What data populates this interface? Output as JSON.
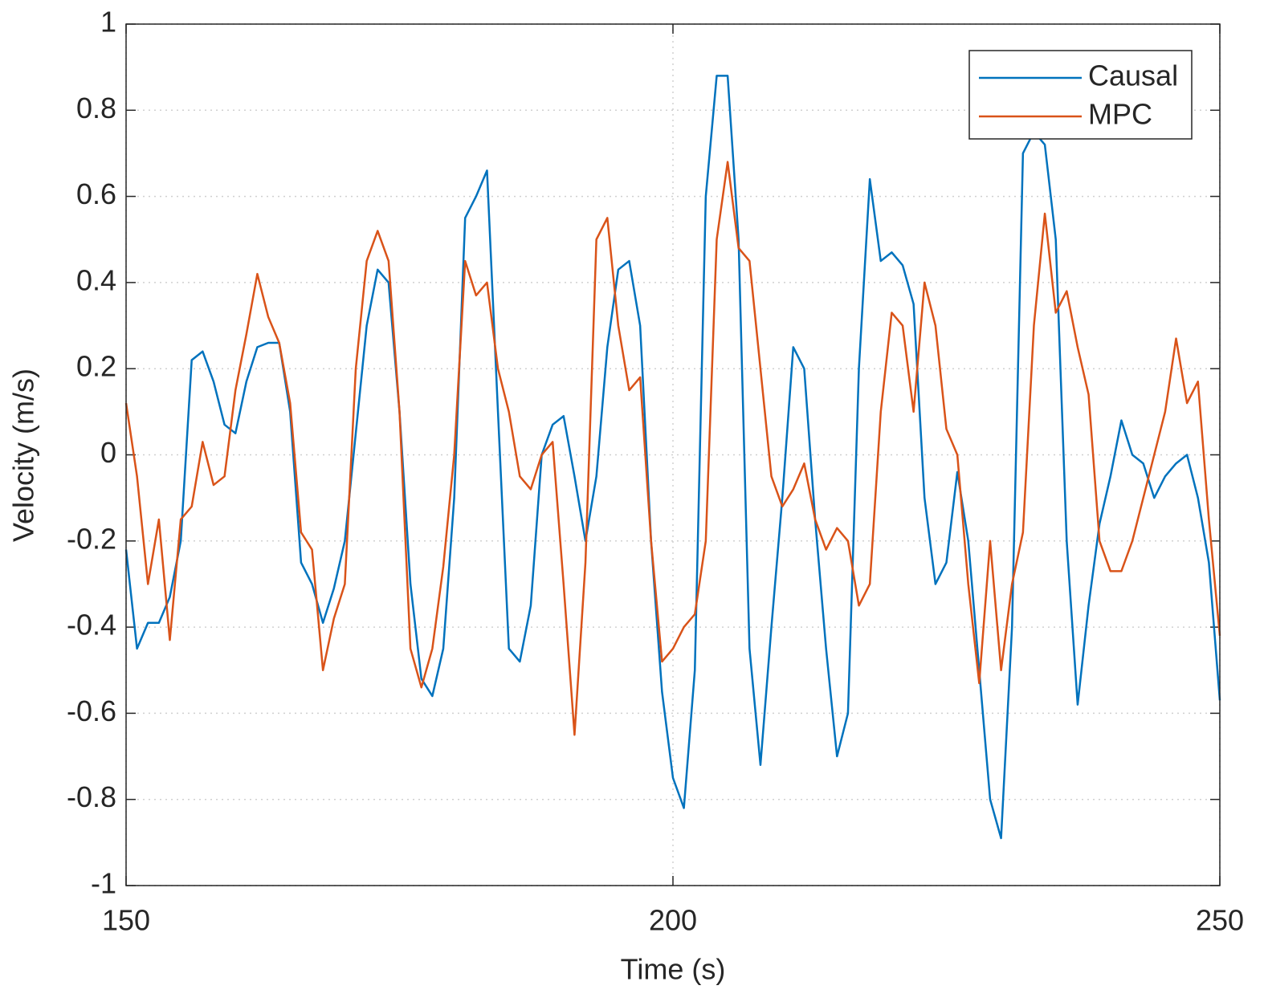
{
  "chart_data": {
    "type": "line",
    "xlabel": "Time (s)",
    "ylabel": "Velocity (m/s)",
    "x": [
      150,
      151,
      152,
      153,
      154,
      155,
      156,
      157,
      158,
      159,
      160,
      161,
      162,
      163,
      164,
      165,
      166,
      167,
      168,
      169,
      170,
      171,
      172,
      173,
      174,
      175,
      176,
      177,
      178,
      179,
      180,
      181,
      182,
      183,
      184,
      185,
      186,
      187,
      188,
      189,
      190,
      191,
      192,
      193,
      194,
      195,
      196,
      197,
      198,
      199,
      200,
      201,
      202,
      203,
      204,
      205,
      206,
      207,
      208,
      209,
      210,
      211,
      212,
      213,
      214,
      215,
      216,
      217,
      218,
      219,
      220,
      221,
      222,
      223,
      224,
      225,
      226,
      227,
      228,
      229,
      230,
      231,
      232,
      233,
      234,
      235,
      236,
      237,
      238,
      239,
      240,
      241,
      242,
      243,
      244,
      245,
      246,
      247,
      248,
      249,
      250
    ],
    "series": [
      {
        "name": "Causal",
        "color": "#0072BD",
        "values": [
          -0.22,
          -0.45,
          -0.39,
          -0.39,
          -0.33,
          -0.2,
          0.22,
          0.24,
          0.17,
          0.07,
          0.05,
          0.17,
          0.25,
          0.26,
          0.26,
          0.1,
          -0.25,
          -0.3,
          -0.39,
          -0.31,
          -0.2,
          0.05,
          0.3,
          0.43,
          0.4,
          0.1,
          -0.3,
          -0.52,
          -0.56,
          -0.45,
          -0.1,
          0.55,
          0.6,
          0.66,
          0.1,
          -0.45,
          -0.48,
          -0.35,
          0.0,
          0.07,
          0.09,
          -0.05,
          -0.2,
          -0.05,
          0.25,
          0.43,
          0.45,
          0.3,
          -0.2,
          -0.55,
          -0.75,
          -0.82,
          -0.5,
          0.6,
          0.88,
          0.88,
          0.5,
          -0.45,
          -0.72,
          -0.4,
          -0.1,
          0.25,
          0.2,
          -0.15,
          -0.45,
          -0.7,
          -0.6,
          0.2,
          0.64,
          0.45,
          0.47,
          0.44,
          0.35,
          -0.1,
          -0.3,
          -0.25,
          -0.04,
          -0.2,
          -0.5,
          -0.8,
          -0.89,
          -0.4,
          0.7,
          0.75,
          0.72,
          0.5,
          -0.2,
          -0.58,
          -0.35,
          -0.16,
          -0.05,
          0.08,
          0.0,
          -0.02,
          -0.1,
          -0.05,
          -0.02,
          0.0,
          -0.1,
          -0.25,
          -0.57
        ]
      },
      {
        "name": "MPC",
        "color": "#D95319",
        "values": [
          0.12,
          -0.05,
          -0.3,
          -0.15,
          -0.43,
          -0.15,
          -0.12,
          0.03,
          -0.07,
          -0.05,
          0.15,
          0.28,
          0.42,
          0.32,
          0.26,
          0.12,
          -0.18,
          -0.22,
          -0.5,
          -0.38,
          -0.3,
          0.2,
          0.45,
          0.52,
          0.45,
          0.1,
          -0.45,
          -0.54,
          -0.45,
          -0.26,
          0.0,
          0.45,
          0.37,
          0.4,
          0.2,
          0.1,
          -0.05,
          -0.08,
          0.0,
          0.03,
          -0.3,
          -0.65,
          -0.25,
          0.5,
          0.55,
          0.3,
          0.15,
          0.18,
          -0.2,
          -0.48,
          -0.45,
          -0.4,
          -0.37,
          -0.2,
          0.5,
          0.68,
          0.48,
          0.45,
          0.2,
          -0.05,
          -0.12,
          -0.08,
          -0.02,
          -0.15,
          -0.22,
          -0.17,
          -0.2,
          -0.35,
          -0.3,
          0.1,
          0.33,
          0.3,
          0.1,
          0.4,
          0.3,
          0.06,
          0.0,
          -0.3,
          -0.53,
          -0.2,
          -0.5,
          -0.3,
          -0.18,
          0.3,
          0.56,
          0.33,
          0.38,
          0.25,
          0.14,
          -0.2,
          -0.27,
          -0.27,
          -0.2,
          -0.1,
          0.0,
          0.1,
          0.27,
          0.12,
          0.17,
          -0.15,
          -0.42
        ]
      }
    ],
    "xlim": [
      150,
      250
    ],
    "xticks": [
      150,
      200,
      250
    ],
    "ylim": [
      -1,
      1
    ],
    "yticks": [
      -1,
      -0.8,
      -0.6,
      -0.4,
      -0.2,
      0,
      0.2,
      0.4,
      0.6,
      0.8,
      1
    ],
    "grid": true,
    "legend": "northeast"
  }
}
